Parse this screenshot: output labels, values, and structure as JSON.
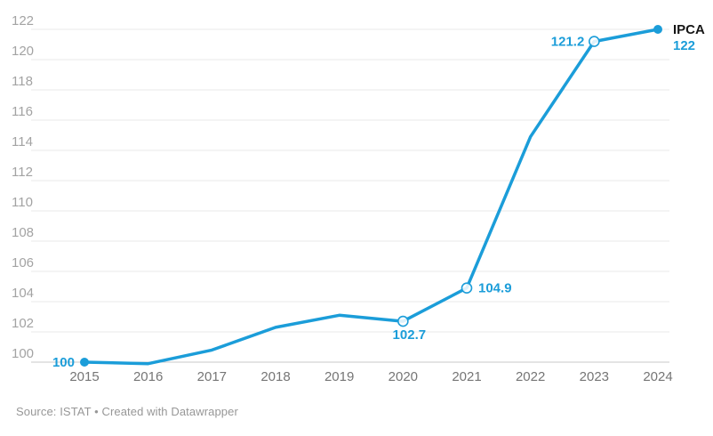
{
  "chart_data": {
    "type": "line",
    "title": "",
    "series_label": "IPCA",
    "x": [
      "2015",
      "2016",
      "2017",
      "2018",
      "2019",
      "2020",
      "2021",
      "2022",
      "2023",
      "2024"
    ],
    "points": [
      {
        "year": "2015",
        "value": 100,
        "label": "100",
        "label_pos": "left",
        "marker": "filled"
      },
      {
        "year": "2016",
        "value": 99.9,
        "marker": "none"
      },
      {
        "year": "2017",
        "value": 100.8,
        "marker": "none"
      },
      {
        "year": "2018",
        "value": 102.3,
        "marker": "none"
      },
      {
        "year": "2019",
        "value": 103.1,
        "marker": "none"
      },
      {
        "year": "2020",
        "value": 102.7,
        "label": "102.7",
        "label_pos": "below",
        "marker": "open"
      },
      {
        "year": "2021",
        "value": 104.9,
        "label": "104.9",
        "label_pos": "right",
        "marker": "open"
      },
      {
        "year": "2022",
        "value": 114.9,
        "marker": "none"
      },
      {
        "year": "2023",
        "value": 121.2,
        "label": "121.2",
        "label_pos": "left",
        "marker": "open"
      },
      {
        "year": "2024",
        "value": 122,
        "label": "122",
        "label_pos": "end",
        "marker": "filled"
      }
    ],
    "ylim": [
      100,
      122
    ],
    "yticks": [
      100,
      102,
      104,
      106,
      108,
      110,
      112,
      114,
      116,
      118,
      120,
      122
    ],
    "grid": "horizontal",
    "legend_position": "series-end",
    "colors": {
      "line": "#1b9dd9",
      "value_label": "#1b9dd9",
      "series_label": "#161616",
      "gridline": "#e9e9e9",
      "baseline": "#c9c9c9",
      "y_tick_label": "#a3a3a3",
      "x_tick_label": "#757575",
      "marker_fill_open": "#ffffff"
    }
  },
  "footer": {
    "source_text": "Source: ISTAT • Created with Datawrapper"
  }
}
